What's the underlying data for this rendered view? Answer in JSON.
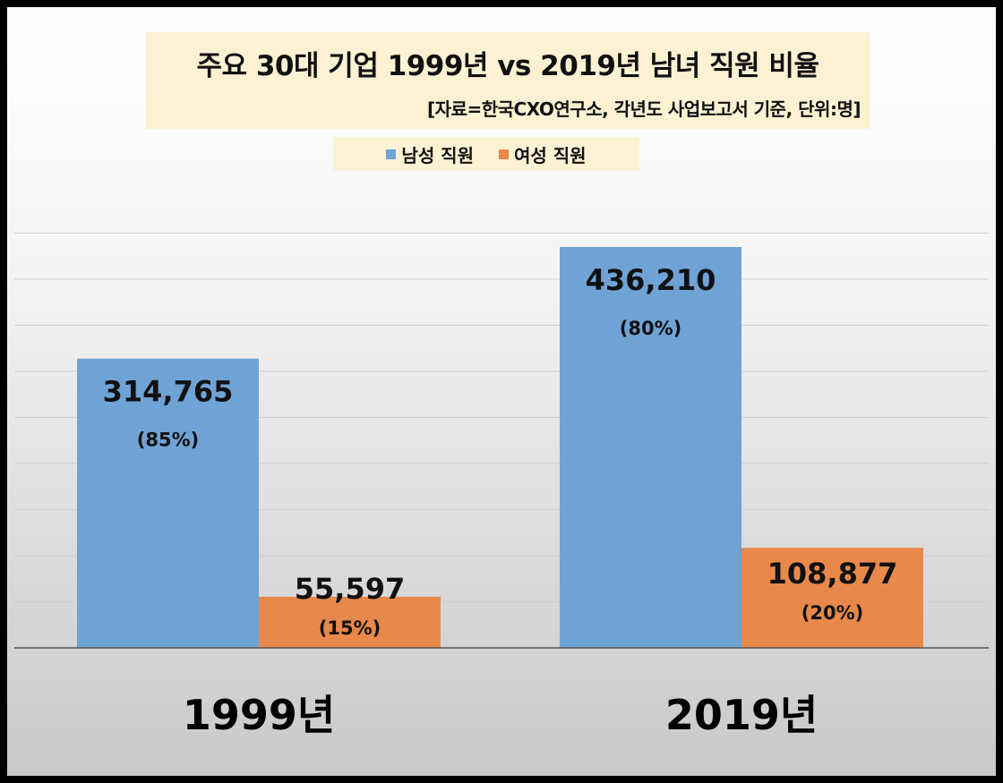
{
  "chart_data": {
    "type": "bar",
    "title": "주요 30대 기업 1999년 vs 2019년 남녀 직원 비율",
    "subtitle": "[자료=한국CXO연구소, 각년도 사업보고서 기준, 단위:명]",
    "categories": [
      "1999년",
      "2019년"
    ],
    "series": [
      {
        "name": "남성 직원",
        "color": "#6fa3d6",
        "values": [
          314765,
          436210
        ],
        "value_labels": [
          "314,765",
          "436,210"
        ],
        "pct_labels": [
          "(85%)",
          "(80%)"
        ]
      },
      {
        "name": "여성 직원",
        "color": "#e8884a",
        "values": [
          55597,
          108877
        ],
        "value_labels": [
          "55,597",
          "108,877"
        ],
        "pct_labels": [
          "(15%)",
          "(20%)"
        ]
      }
    ],
    "ylim": [
      0,
      500000
    ],
    "grid": true,
    "legend_position": "top"
  }
}
